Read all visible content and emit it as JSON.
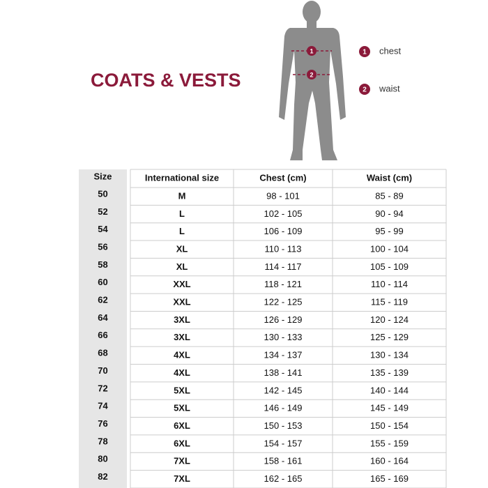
{
  "header": {
    "title": "COATS & VESTS"
  },
  "legend": [
    {
      "number": "1",
      "label": "chest"
    },
    {
      "number": "2",
      "label": "waist"
    }
  ],
  "table": {
    "columns": [
      "Size",
      "International size",
      "Chest (cm)",
      "Waist (cm)"
    ],
    "rows": [
      [
        "50",
        "M",
        "98 - 101",
        "85 - 89"
      ],
      [
        "52",
        "L",
        "102 - 105",
        "90 - 94"
      ],
      [
        "54",
        "L",
        "106 - 109",
        "95 - 99"
      ],
      [
        "56",
        "XL",
        "110 - 113",
        "100 - 104"
      ],
      [
        "58",
        "XL",
        "114 - 117",
        "105 - 109"
      ],
      [
        "60",
        "XXL",
        "118 - 121",
        "110 - 114"
      ],
      [
        "62",
        "XXL",
        "122 - 125",
        "115 - 119"
      ],
      [
        "64",
        "3XL",
        "126 - 129",
        "120 - 124"
      ],
      [
        "66",
        "3XL",
        "130 - 133",
        "125 - 129"
      ],
      [
        "68",
        "4XL",
        "134 - 137",
        "130 - 134"
      ],
      [
        "70",
        "4XL",
        "138 - 141",
        "135 - 139"
      ],
      [
        "72",
        "5XL",
        "142 - 145",
        "140 - 144"
      ],
      [
        "74",
        "5XL",
        "146 - 149",
        "145 - 149"
      ],
      [
        "76",
        "6XL",
        "150 - 153",
        "150 - 154"
      ],
      [
        "78",
        "6XL",
        "154 - 157",
        "155 - 159"
      ],
      [
        "80",
        "7XL",
        "158 - 161",
        "160 - 164"
      ],
      [
        "82",
        "7XL",
        "162 - 165",
        "165 - 169"
      ]
    ]
  }
}
